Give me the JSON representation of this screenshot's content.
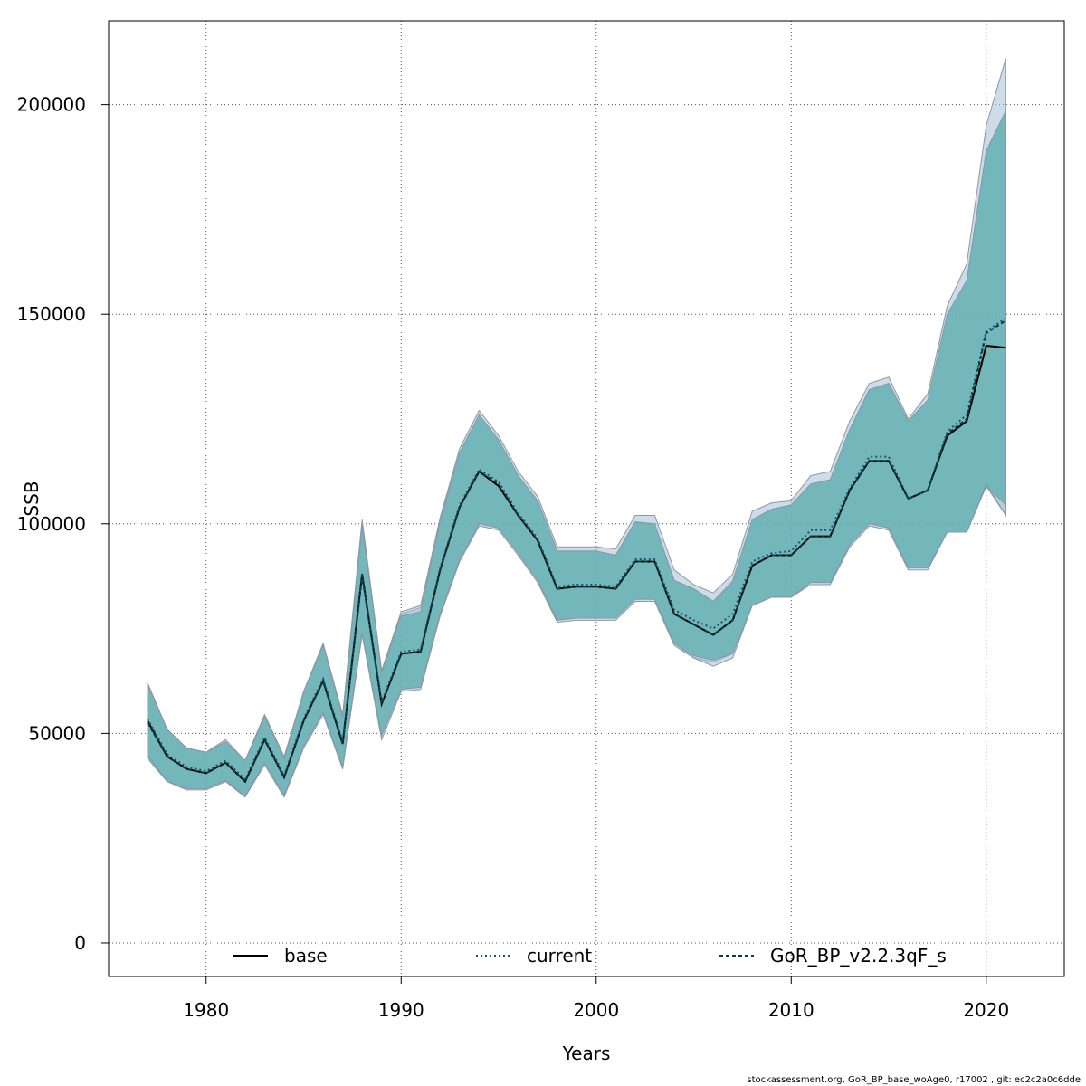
{
  "chart_data": {
    "type": "line",
    "title": "",
    "xlabel": "Years",
    "ylabel": "SSB",
    "xlim": [
      1975,
      2024
    ],
    "ylim": [
      -8000,
      220000
    ],
    "x_ticks": [
      1980,
      1990,
      2000,
      2010,
      2020
    ],
    "y_ticks": [
      0,
      50000,
      100000,
      150000,
      200000
    ],
    "grid": true,
    "legend_position": "bottom",
    "x": [
      1977,
      1978,
      1979,
      1980,
      1981,
      1982,
      1983,
      1984,
      1985,
      1986,
      1987,
      1988,
      1989,
      1990,
      1991,
      1992,
      1993,
      1994,
      1995,
      1996,
      1997,
      1998,
      1999,
      2000,
      2001,
      2002,
      2003,
      2004,
      2005,
      2006,
      2007,
      2008,
      2009,
      2010,
      2011,
      2012,
      2013,
      2014,
      2015,
      2016,
      2017,
      2018,
      2019,
      2020,
      2021
    ],
    "series": [
      {
        "name": "base",
        "color": "#000000",
        "dash": "solid",
        "values": [
          53000,
          44500,
          41500,
          40500,
          43000,
          38500,
          48500,
          39500,
          53000,
          62500,
          47500,
          88000,
          57000,
          69000,
          69500,
          89000,
          104000,
          112500,
          109000,
          102000,
          96000,
          84500,
          85000,
          85000,
          84500,
          91000,
          91000,
          78500,
          76000,
          73500,
          77000,
          90000,
          92500,
          92500,
          97000,
          97000,
          108000,
          115000,
          115000,
          106000,
          108000,
          121000,
          124500,
          142500,
          142000
        ],
        "lower": [
          45000,
          38500,
          36800,
          36800,
          38800,
          35000,
          43000,
          35200,
          47000,
          55000,
          41800,
          74000,
          49500,
          60500,
          61000,
          78500,
          91500,
          100000,
          99000,
          93000,
          86500,
          77000,
          77500,
          77500,
          77500,
          82000,
          82000,
          71500,
          68000,
          67000,
          69000,
          80500,
          82500,
          82500,
          86000,
          86000,
          95000,
          100000,
          99000,
          89500,
          89500,
          98000,
          98000,
          109000,
          102000
        ],
        "upper": [
          62000,
          51000,
          46500,
          45500,
          48000,
          43500,
          54000,
          44000,
          60000,
          71000,
          54000,
          100000,
          64500,
          78500,
          80000,
          101000,
          117000,
          126000,
          120000,
          111500,
          105500,
          93500,
          93500,
          93500,
          92500,
          100500,
          100000,
          86500,
          84500,
          81500,
          86500,
          101000,
          103500,
          104500,
          109500,
          110500,
          122500,
          132000,
          133500,
          124500,
          129500,
          150000,
          158000,
          189000,
          198500
        ],
        "band_color": "#a6c0d6"
      },
      {
        "name": "current",
        "color": "#1f4e79",
        "dash": "dotted",
        "values": [
          53500,
          45000,
          42000,
          41000,
          43500,
          39000,
          49000,
          40000,
          53500,
          63000,
          48000,
          88000,
          57500,
          69500,
          70000,
          89500,
          104500,
          113000,
          110000,
          102500,
          96500,
          85000,
          85500,
          85500,
          85000,
          91500,
          91500,
          79500,
          77000,
          75000,
          78500,
          91000,
          93000,
          93500,
          98500,
          98500,
          108500,
          116000,
          116000,
          106000,
          108000,
          122000,
          126000,
          146000,
          149000
        ],
        "lower": [
          44000,
          38500,
          36500,
          36500,
          38500,
          34800,
          42500,
          34800,
          46500,
          54500,
          41500,
          73500,
          48500,
          60000,
          60500,
          78000,
          91000,
          99500,
          98500,
          92500,
          86000,
          76500,
          77000,
          77000,
          77000,
          81500,
          81500,
          71000,
          68000,
          66000,
          68000,
          80500,
          82500,
          82500,
          85500,
          85500,
          94500,
          99500,
          98500,
          89000,
          89000,
          98000,
          98000,
          109500,
          102000
        ],
        "upper": [
          62000,
          51000,
          46500,
          45500,
          48500,
          43500,
          54500,
          44500,
          60000,
          71500,
          54500,
          101000,
          65000,
          79000,
          80500,
          101500,
          118000,
          127000,
          121000,
          112500,
          106500,
          94500,
          94500,
          94500,
          94000,
          102000,
          102000,
          89000,
          85500,
          83500,
          88000,
          103000,
          105000,
          105500,
          111500,
          112500,
          124500,
          133500,
          135000,
          125000,
          131000,
          152000,
          162000,
          195000,
          211000
        ],
        "band_color": "#a6c0d6"
      },
      {
        "name": "GoR_BP_v2.2.3qF_s",
        "color": "#0b3d3d",
        "dash": "dashed",
        "values": [
          52500,
          44500,
          41500,
          40500,
          43000,
          38500,
          48500,
          39500,
          53000,
          62500,
          47500,
          87500,
          57000,
          69000,
          69500,
          89000,
          104000,
          112500,
          109500,
          102000,
          96000,
          84500,
          85000,
          85000,
          84500,
          91000,
          91000,
          78500,
          76000,
          73500,
          77000,
          90000,
          92500,
          92500,
          97000,
          97000,
          108000,
          115000,
          115000,
          106000,
          108000,
          121500,
          125000,
          145500,
          148500
        ],
        "lower": [
          44500,
          38500,
          36800,
          36800,
          38800,
          35000,
          43000,
          35200,
          47000,
          55000,
          41800,
          74000,
          49500,
          60500,
          61000,
          78500,
          91500,
          100000,
          99000,
          93000,
          86500,
          77000,
          77500,
          77500,
          77500,
          82000,
          82000,
          71500,
          68500,
          67500,
          69000,
          80500,
          82500,
          82500,
          86000,
          86000,
          95000,
          100000,
          99000,
          89500,
          89500,
          98000,
          98000,
          109000,
          104500
        ],
        "upper": [
          61500,
          51000,
          46500,
          45500,
          48000,
          43500,
          54000,
          44000,
          60000,
          71000,
          54000,
          99500,
          64500,
          78000,
          79000,
          100500,
          117000,
          126000,
          120000,
          111500,
          105500,
          93500,
          93500,
          93500,
          92500,
          100500,
          100000,
          86500,
          84500,
          81500,
          86000,
          101000,
          103500,
          104500,
          109500,
          110500,
          122500,
          132000,
          133500,
          124500,
          129500,
          150000,
          158000,
          189000,
          198500
        ],
        "band_color": "#3da59c"
      }
    ],
    "annotations": []
  },
  "footer_text": "stockassessment.org, GoR_BP_base_woAge0, r17002 , git: ec2c2a0c6dde"
}
